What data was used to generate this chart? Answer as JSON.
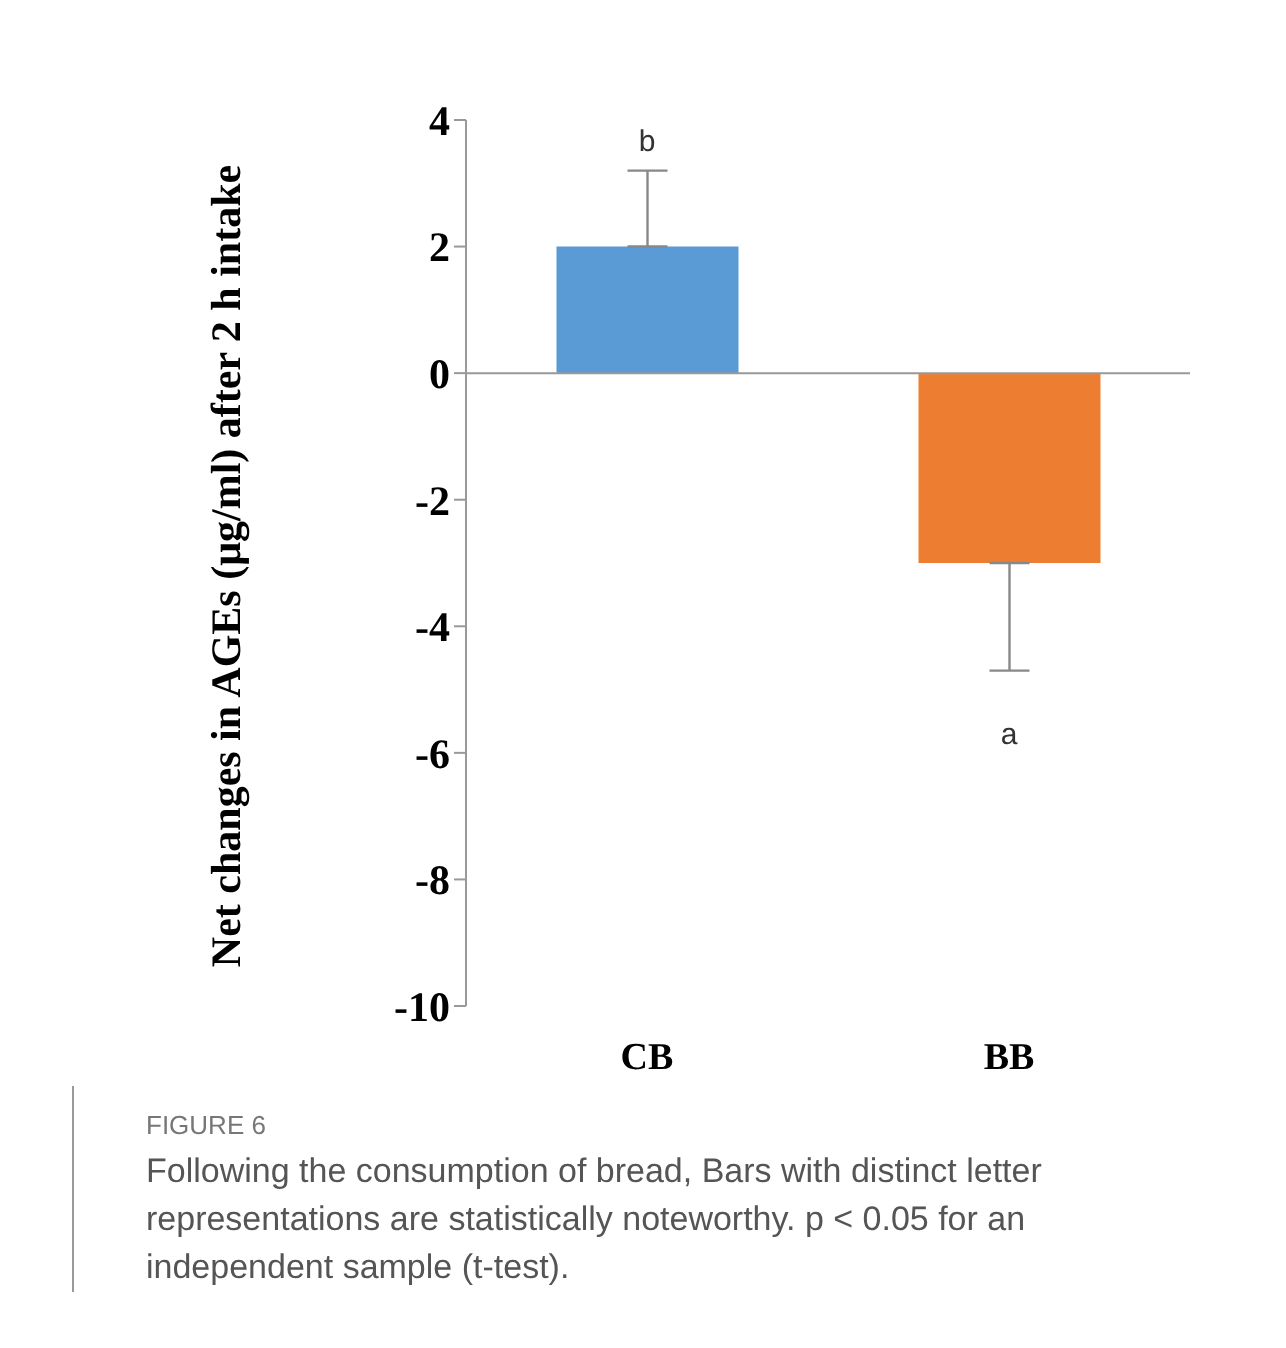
{
  "chart_data": {
    "type": "bar",
    "ylabel": "Net changes in AGEs (μg/ml) after 2 h intake",
    "categories": [
      "CB",
      "BB"
    ],
    "values": [
      2,
      -3
    ],
    "colors": [
      "#5b9bd5",
      "#ed7d31"
    ],
    "errors": [
      [
        2,
        3.2
      ],
      [
        -4.7,
        -3
      ]
    ],
    "ylim": [
      -10,
      4
    ],
    "yticks": [
      -10,
      -8,
      -6,
      -4,
      -2,
      0,
      2,
      4
    ],
    "annotations": [
      {
        "text": "b",
        "x": "CB",
        "y": 3.2
      },
      {
        "text": "a",
        "x": "BB",
        "y": -4.7
      },
      "FIGURE 6",
      "Following the consumption of bread, Bars with distinct letter representations are statistically noteworthy. p < 0.05 for an independent sample (t-test)."
    ]
  }
}
